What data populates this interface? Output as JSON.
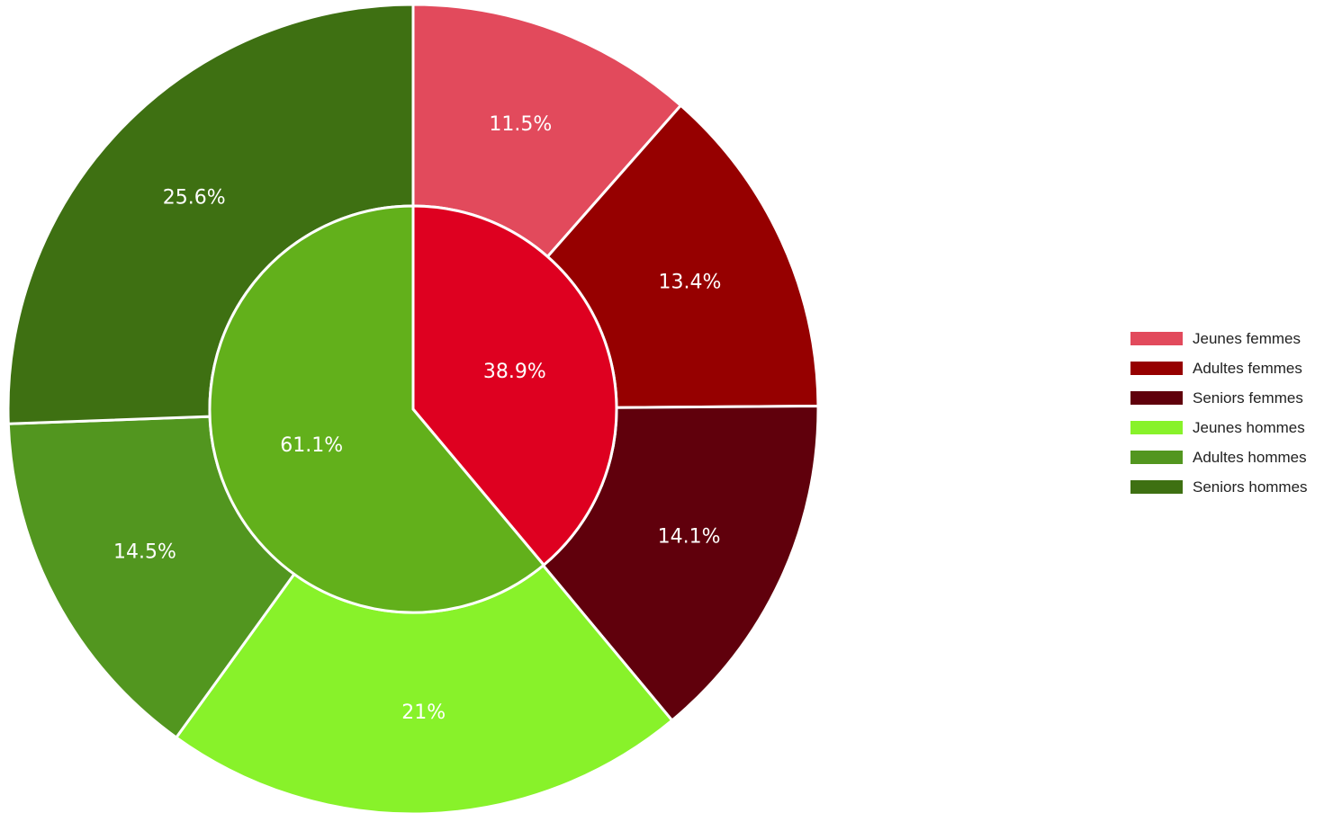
{
  "chart_data": {
    "type": "pie",
    "variant": "two-level donut (inner ring: groups, outer ring: sub-categories)",
    "inner": [
      {
        "label_text": "38.9%",
        "value": 38.9,
        "color": "#de0020"
      },
      {
        "label_text": "61.1%",
        "value": 61.1,
        "color": "#62b01b"
      }
    ],
    "outer": [
      {
        "name": "Jeunes femmes",
        "label_text": "11.5%",
        "value": 11.5,
        "color": "#e24a5c"
      },
      {
        "name": "Adultes femmes",
        "label_text": "13.4%",
        "value": 13.4,
        "color": "#960000"
      },
      {
        "name": "Seniors femmes",
        "label_text": "14.1%",
        "value": 14.1,
        "color": "#60000c"
      },
      {
        "name": "Jeunes hommes",
        "label_text": "21%",
        "value": 21.0,
        "color": "#88f22a"
      },
      {
        "name": "Adultes hommes",
        "label_text": "14.5%",
        "value": 14.5,
        "color": "#52961f"
      },
      {
        "name": "Seniors hommes",
        "label_text": "25.6%",
        "value": 25.6,
        "color": "#3e7012"
      }
    ],
    "start_angle": "12 o'clock",
    "direction": "clockwise",
    "legend": {
      "position": "right",
      "entries": [
        {
          "label": "Jeunes femmes",
          "color": "#e24a5c"
        },
        {
          "label": "Adultes femmes",
          "color": "#960000"
        },
        {
          "label": "Seniors femmes",
          "color": "#60000c"
        },
        {
          "label": "Jeunes hommes",
          "color": "#88f22a"
        },
        {
          "label": "Adultes hommes",
          "color": "#52961f"
        },
        {
          "label": "Seniors hommes",
          "color": "#3e7012"
        }
      ]
    }
  }
}
